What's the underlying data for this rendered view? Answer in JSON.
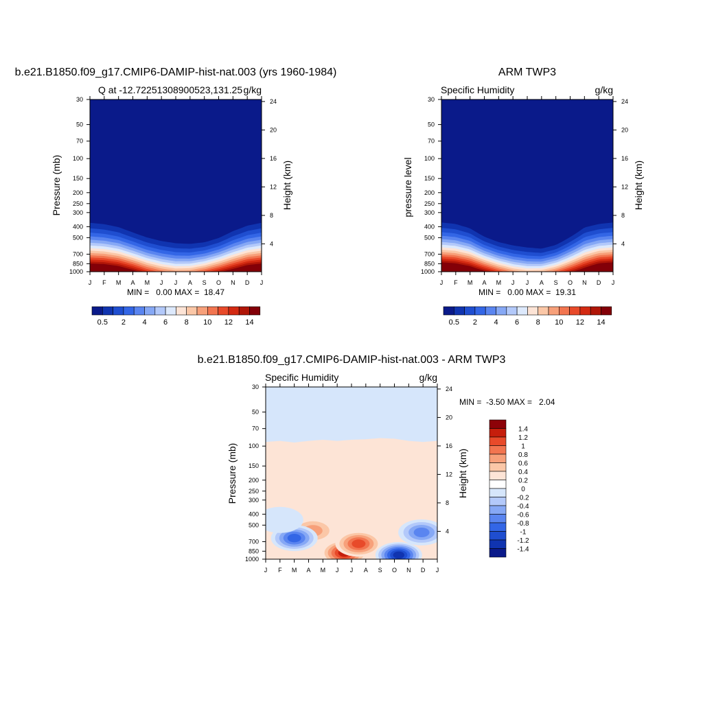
{
  "colors": {
    "levels16": [
      "#0a1a8a",
      "#1034b0",
      "#1f4ed0",
      "#3366e6",
      "#5a85f0",
      "#86a8f5",
      "#b3c9fa",
      "#dde9fc",
      "#fde4d6",
      "#fbc7a7",
      "#f7a07a",
      "#f27550",
      "#e84a2a",
      "#d32a12",
      "#b01608",
      "#830008"
    ],
    "diff": [
      "#0a1a8a",
      "#1034b0",
      "#1f4ed0",
      "#3366e6",
      "#5a85f0",
      "#86a8f5",
      "#b3c9fa",
      "#d6e6fb",
      "#ffffff",
      "#fde4d6",
      "#fbc7a7",
      "#f7a07a",
      "#f27550",
      "#e84a2a",
      "#c61e0c",
      "#8d0208"
    ]
  },
  "chart_data": [
    {
      "type": "heatmap",
      "title": "b.e21.B1850.f09_g17.CMIP6-DAMIP-hist-nat.003 (yrs 1960-1984)",
      "subtitle_left": "Q at -12.72251308900523,131.25",
      "subtitle_right": "g/kg",
      "ylabel": "Pressure (mb)",
      "ylabel_right": "Height (km)",
      "y_scale": "log",
      "ylim": [
        1000,
        30
      ],
      "yticks": [
        "30",
        "50",
        "70",
        "100",
        "150",
        "200",
        "250",
        "300",
        "400",
        "500",
        "700",
        "850",
        "1000"
      ],
      "yticks_right": [
        "24",
        "20",
        "16",
        "12",
        "8",
        "4"
      ],
      "xticks": [
        "J",
        "F",
        "M",
        "A",
        "M",
        "J",
        "J",
        "A",
        "S",
        "O",
        "N",
        "D",
        "J"
      ],
      "stats": "MIN =   0.00 MAX =  18.47",
      "colorbar_labels": [
        "0.5",
        "2",
        "4",
        "6",
        "8",
        "10",
        "12",
        "14"
      ],
      "moist_top_mb_by_month": [
        290,
        300,
        320,
        360,
        400,
        430,
        450,
        460,
        450,
        410,
        350,
        310,
        290
      ],
      "surface_q_gkg_by_month": [
        18.2,
        18.0,
        17.0,
        15.0,
        12.5,
        10.8,
        9.8,
        10.0,
        11.5,
        13.5,
        15.5,
        17.5,
        18.2
      ]
    },
    {
      "type": "heatmap",
      "title": "ARM TWP3",
      "subtitle_left": "Specific Humidity",
      "subtitle_right": "g/kg",
      "ylabel": "pressure level",
      "ylabel_right": "Height (km)",
      "y_scale": "log",
      "ylim": [
        1000,
        30
      ],
      "yticks": [
        "30",
        "50",
        "70",
        "100",
        "150",
        "200",
        "250",
        "300",
        "400",
        "500",
        "700",
        "850",
        "1000"
      ],
      "yticks_right": [
        "24",
        "20",
        "16",
        "12",
        "8",
        "4"
      ],
      "xticks": [
        "J",
        "F",
        "M",
        "A",
        "M",
        "J",
        "J",
        "A",
        "S",
        "O",
        "N",
        "D",
        "J"
      ],
      "stats": "MIN =   0.00 MAX =  19.31",
      "colorbar_labels": [
        "0.5",
        "2",
        "4",
        "6",
        "8",
        "10",
        "12",
        "14"
      ],
      "moist_top_mb_by_month": [
        290,
        300,
        330,
        400,
        450,
        480,
        500,
        520,
        480,
        400,
        320,
        300,
        290
      ],
      "surface_q_gkg_by_month": [
        19.0,
        18.5,
        17.0,
        14.5,
        12.0,
        10.0,
        9.0,
        9.2,
        11.0,
        13.5,
        16.0,
        18.5,
        19.0
      ]
    },
    {
      "type": "heatmap",
      "title": "b.e21.B1850.f09_g17.CMIP6-DAMIP-hist-nat.003 - ARM TWP3",
      "subtitle_left": "Specific Humidity",
      "subtitle_right": "g/kg",
      "ylabel": "Pressure (mb)",
      "ylabel_right": "Height (km)",
      "y_scale": "log",
      "ylim": [
        1000,
        30
      ],
      "yticks": [
        "30",
        "50",
        "70",
        "100",
        "150",
        "200",
        "250",
        "300",
        "400",
        "500",
        "700",
        "850",
        "1000"
      ],
      "yticks_right": [
        "24",
        "20",
        "16",
        "12",
        "8",
        "4"
      ],
      "xticks": [
        "J",
        "F",
        "M",
        "A",
        "M",
        "J",
        "J",
        "A",
        "S",
        "O",
        "N",
        "D",
        "J"
      ],
      "stats": "MIN =  -3.50 MAX =   2.04",
      "colorbar_labels": [
        "1.4",
        "1.2",
        "1",
        "0.8",
        "0.6",
        "0.4",
        "0.2",
        "0",
        "-0.2",
        "-0.4",
        "-0.6",
        "-0.8",
        "-1",
        "-1.2",
        "-1.4"
      ],
      "upper_boundary_mb_by_month": [
        92,
        90,
        93,
        90,
        88,
        90,
        88,
        87,
        85,
        86,
        90,
        92,
        90
      ],
      "features": [
        {
          "name": "positive-lowlevel-jja",
          "month": 5.5,
          "p_mb": 880,
          "value": 1.2
        },
        {
          "name": "positive-mid-jja",
          "month": 6.5,
          "p_mb": 730,
          "value": 1.0
        },
        {
          "name": "positive-apr",
          "month": 3.3,
          "p_mb": 560,
          "value": 0.6
        },
        {
          "name": "negative-mar",
          "month": 2.0,
          "p_mb": 650,
          "value": -1.0
        },
        {
          "name": "negative-oct-low",
          "month": 9.3,
          "p_mb": 920,
          "value": -1.3
        },
        {
          "name": "negative-dec",
          "month": 10.9,
          "p_mb": 580,
          "value": -0.8
        },
        {
          "name": "negative-feb",
          "month": 1.0,
          "p_mb": 450,
          "value": -0.3
        }
      ]
    }
  ]
}
